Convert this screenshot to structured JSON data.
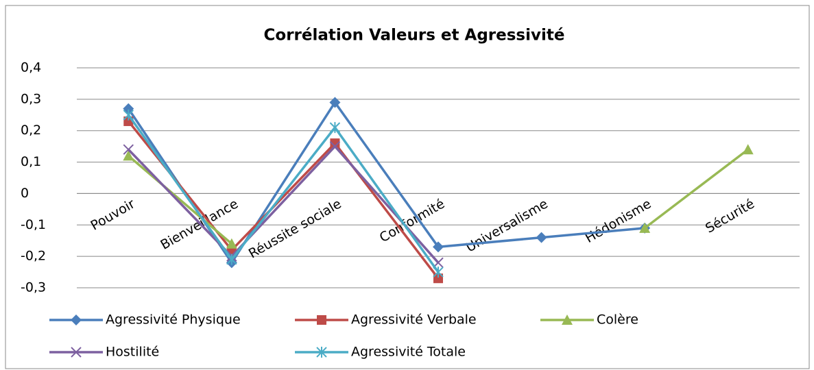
{
  "chart_data": {
    "type": "line",
    "title": "Corrélation Valeurs et Agressivité",
    "categories": [
      "Pouvoir",
      "Bienveillance",
      "Réussite sociale",
      "Conformité",
      "Universalisme",
      "Hédonisme",
      "Sécurité"
    ],
    "series": [
      {
        "name": "Agressivité Physique",
        "color": "#4a7ebb",
        "marker": "diamond",
        "values": [
          0.27,
          -0.22,
          0.29,
          -0.17,
          -0.14,
          -0.11,
          null
        ]
      },
      {
        "name": "Agressivité Verbale",
        "color": "#be4b48",
        "marker": "square",
        "values": [
          0.23,
          -0.18,
          0.16,
          -0.27,
          null,
          null,
          null
        ]
      },
      {
        "name": "Colère",
        "color": "#98b954",
        "marker": "triangle",
        "values": [
          0.12,
          -0.16,
          null,
          null,
          null,
          -0.11,
          0.14
        ]
      },
      {
        "name": "Hostilité",
        "color": "#7d60a0",
        "marker": "x",
        "values": [
          0.14,
          -0.2,
          0.15,
          -0.22,
          null,
          null,
          null
        ]
      },
      {
        "name": "Agressivité Totale",
        "color": "#4bacc6",
        "marker": "star",
        "values": [
          0.25,
          -0.21,
          0.21,
          -0.25,
          null,
          null,
          null
        ]
      }
    ],
    "ylim": [
      -0.3,
      0.4
    ],
    "yticks": [
      {
        "value": -0.3,
        "label": "-0,3"
      },
      {
        "value": -0.2,
        "label": "-0,2"
      },
      {
        "value": -0.1,
        "label": "-0,1"
      },
      0,
      {
        "value": 0.1,
        "label": "0,1"
      },
      {
        "value": 0.2,
        "label": "0,2"
      },
      {
        "value": 0.3,
        "label": "0,3"
      },
      {
        "value": 0.4,
        "label": "0,4"
      }
    ],
    "grid": true,
    "legend": "bottom"
  }
}
